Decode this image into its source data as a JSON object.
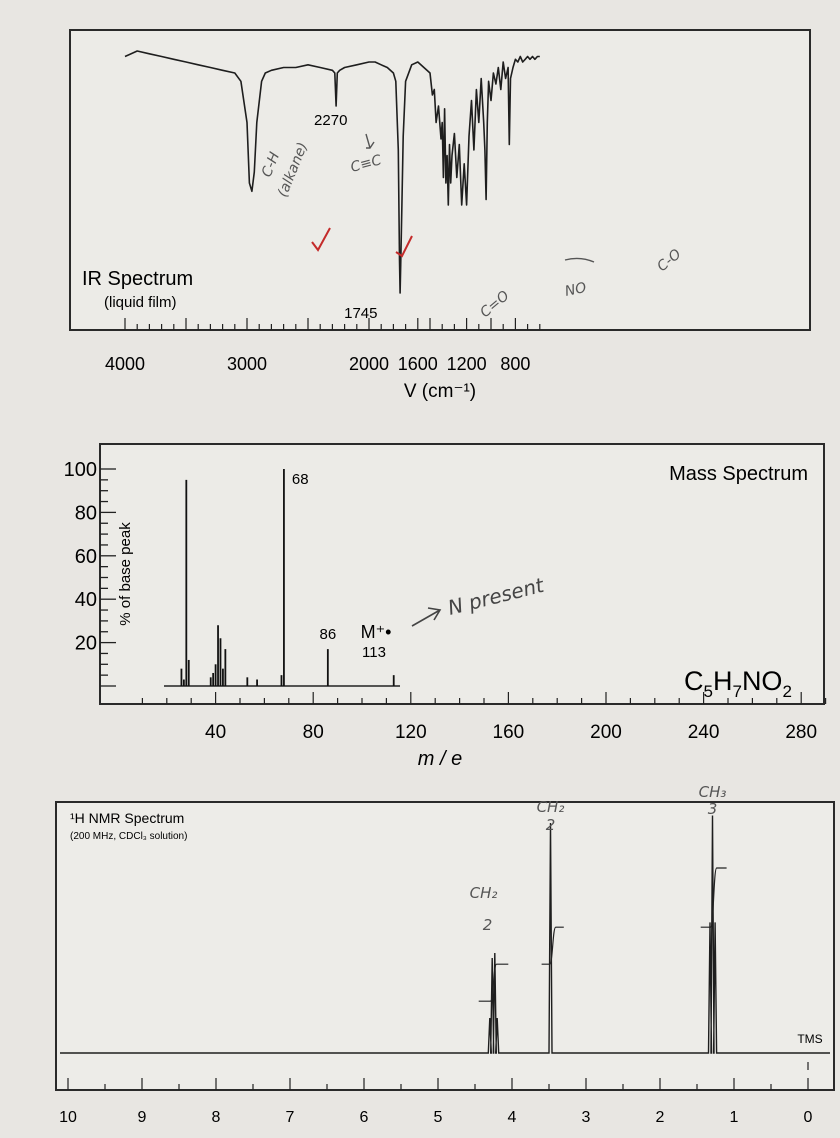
{
  "chart_data": [
    {
      "type": "line",
      "title": "IR Spectrum",
      "subtitle": "(liquid film)",
      "xlabel": "V (cm⁻¹)",
      "ylabel": "",
      "x_direction": "decreasing",
      "xlim": [
        4000,
        600
      ],
      "x_ticks": [
        4000,
        3000,
        2000,
        1600,
        1200,
        800
      ],
      "x_tick_labels": [
        "4000",
        "3000",
        "2000",
        "1600",
        "1200",
        "800"
      ],
      "ylim": [
        0,
        100
      ],
      "grid": false,
      "series": [
        {
          "x": [
            4000,
            3900,
            3800,
            3700,
            3600,
            3500,
            3400,
            3300,
            3200,
            3100,
            3050,
            3000,
            2980,
            2960,
            2940,
            2920,
            2880,
            2850,
            2800,
            2700,
            2600,
            2500,
            2400,
            2300,
            2280,
            2270,
            2260,
            2240,
            2200,
            2100,
            2000,
            1950,
            1900,
            1850,
            1800,
            1780,
            1760,
            1750,
            1745,
            1740,
            1730,
            1720,
            1700,
            1650,
            1600,
            1550,
            1500,
            1480,
            1465,
            1450,
            1430,
            1410,
            1400,
            1390,
            1380,
            1370,
            1360,
            1350,
            1340,
            1330,
            1320,
            1300,
            1280,
            1260,
            1240,
            1220,
            1200,
            1180,
            1160,
            1140,
            1120,
            1100,
            1080,
            1060,
            1050,
            1040,
            1030,
            1020,
            1000,
            980,
            960,
            940,
            920,
            900,
            880,
            860,
            850,
            840,
            820,
            800,
            780,
            760,
            740,
            720,
            700,
            680,
            660,
            640,
            620,
            600
          ],
          "y": [
            94,
            96,
            95,
            94,
            93,
            92,
            91,
            90,
            89,
            88,
            85,
            70,
            48,
            45,
            52,
            70,
            85,
            88,
            89,
            90,
            90,
            91,
            90,
            89,
            88,
            76,
            88,
            89,
            90,
            91,
            92,
            92,
            91,
            90,
            88,
            85,
            60,
            20,
            8,
            18,
            40,
            65,
            85,
            91,
            92,
            90,
            88,
            80,
            82,
            70,
            76,
            64,
            70,
            50,
            75,
            48,
            58,
            40,
            62,
            48,
            58,
            66,
            50,
            62,
            40,
            55,
            40,
            65,
            78,
            60,
            82,
            70,
            86,
            70,
            60,
            42,
            70,
            85,
            78,
            88,
            84,
            90,
            82,
            92,
            86,
            90,
            62,
            86,
            90,
            93,
            92,
            94,
            92,
            93,
            94,
            93,
            94,
            93,
            94,
            94
          ]
        }
      ],
      "annotations": [
        {
          "x": 2270,
          "text": "2270"
        },
        {
          "x": 1745,
          "text": "1745"
        }
      ],
      "handwritten_notes": [
        "C-H",
        "(alkane)",
        "C≡C",
        "C=O",
        "NO",
        "C-O"
      ]
    },
    {
      "type": "bar",
      "title": "Mass Spectrum",
      "xlabel": "m / e",
      "ylabel": "% of base peak",
      "xlim": [
        0,
        300
      ],
      "ylim": [
        0,
        100
      ],
      "x_ticks": [
        40,
        80,
        120,
        160,
        200,
        240,
        280
      ],
      "x_tick_labels": [
        "40",
        "80",
        "120",
        "160",
        "200",
        "240",
        "280"
      ],
      "y_ticks": [
        20,
        40,
        60,
        80,
        100
      ],
      "y_tick_labels": [
        "20",
        "40",
        "60",
        "80",
        "100"
      ],
      "grid": false,
      "peaks": [
        {
          "mz": 26,
          "intensity": 8
        },
        {
          "mz": 27,
          "intensity": 3
        },
        {
          "mz": 28,
          "intensity": 95
        },
        {
          "mz": 29,
          "intensity": 12
        },
        {
          "mz": 38,
          "intensity": 4
        },
        {
          "mz": 39,
          "intensity": 6
        },
        {
          "mz": 40,
          "intensity": 10
        },
        {
          "mz": 41,
          "intensity": 28
        },
        {
          "mz": 42,
          "intensity": 22
        },
        {
          "mz": 43,
          "intensity": 8
        },
        {
          "mz": 44,
          "intensity": 17
        },
        {
          "mz": 53,
          "intensity": 4
        },
        {
          "mz": 57,
          "intensity": 3
        },
        {
          "mz": 67,
          "intensity": 5
        },
        {
          "mz": 68,
          "intensity": 100
        },
        {
          "mz": 86,
          "intensity": 17
        },
        {
          "mz": 113,
          "intensity": 5
        }
      ],
      "data_labels": [
        {
          "mz": 68,
          "text": "68"
        },
        {
          "mz": 86,
          "text": "86"
        }
      ],
      "molecular_ion": {
        "symbol": "M⁺•",
        "mz_label": "113"
      },
      "formula": {
        "c": "C",
        "c_n": "5",
        "h": "H",
        "h_n": "7",
        "rest": "NO",
        "rest_n": "2"
      },
      "handwritten_note": "N present"
    },
    {
      "type": "line",
      "title": "¹H NMR Spectrum",
      "subtitle": "(200 MHz, CDCl₃ solution)",
      "xlabel": "",
      "ylabel": "",
      "x_direction": "decreasing",
      "xlim": [
        10,
        0
      ],
      "x_ticks": [
        10,
        9,
        8,
        7,
        6,
        5,
        4,
        3,
        2,
        1,
        0
      ],
      "x_tick_labels": [
        "10",
        "9",
        "8",
        "7",
        "6",
        "5",
        "4",
        "3",
        "2",
        "1",
        "0"
      ],
      "grid": false,
      "peaks": [
        {
          "ppm": 4.25,
          "height": 0.4,
          "multiplicity": "quartet",
          "protons": "2",
          "group": "CH₂"
        },
        {
          "ppm": 3.48,
          "height": 0.92,
          "multiplicity": "singlet",
          "protons": "2",
          "group": "CH₂"
        },
        {
          "ppm": 1.29,
          "height": 0.95,
          "multiplicity": "triplet",
          "protons": "3",
          "group": "CH₃"
        }
      ],
      "integration_steps": [
        {
          "ppm_start": 4.45,
          "ppm_end": 4.05,
          "from": 0.14,
          "to": 0.24
        },
        {
          "ppm_start": 3.6,
          "ppm_end": 3.3,
          "from": 0.24,
          "to": 0.34
        },
        {
          "ppm_start": 1.45,
          "ppm_end": 1.1,
          "from": 0.34,
          "to": 0.5
        }
      ],
      "reference_label": "TMS",
      "handwritten_labels": [
        {
          "group": "CH₂",
          "count": "2",
          "ppm": 4.25
        },
        {
          "group": "CH₂",
          "count": "2",
          "ppm": 3.48
        },
        {
          "group": "CH₃",
          "count": "3",
          "ppm": 1.29
        }
      ]
    }
  ]
}
